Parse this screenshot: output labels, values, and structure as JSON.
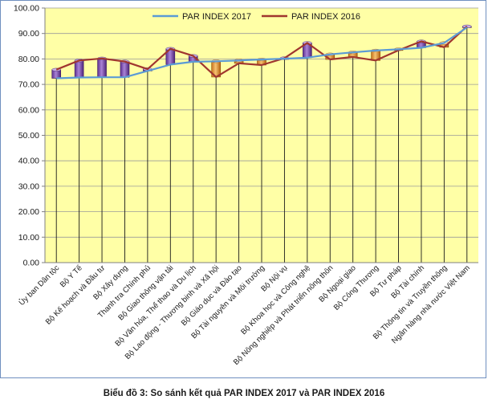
{
  "caption": "Biểu đồ 3: So sánh kết quả PAR INDEX 2017 và PAR INDEX 2016",
  "chart_data": {
    "type": "line",
    "title": "",
    "xlabel": "",
    "ylabel": "",
    "ylim": [
      0,
      100
    ],
    "yticks": [
      "0.00",
      "10.00",
      "20.00",
      "30.00",
      "40.00",
      "50.00",
      "60.00",
      "70.00",
      "80.00",
      "90.00",
      "100.00"
    ],
    "grid": true,
    "legend_position": "top",
    "categories": [
      "Ủy ban Dân tộc",
      "Bộ Y Tế",
      "Bộ Kế hoạch và Đầu tư",
      "Bộ Xây dựng",
      "Thanh tra Chính phủ",
      "Bộ Giao thông vận tải",
      "Bộ Văn hóa, Thể thao và Du lịch",
      "Bộ Lao động - Thương binh và Xã hội",
      "Bộ Giáo dục và Đào tạo",
      "Bộ Tài nguyên và Môi trường",
      "Bộ Nội vụ",
      "Bộ Khoa học và Công nghệ",
      "Bộ Nông nghiệp và Phát triển nông thôn",
      "Bộ Ngoại giao",
      "Bộ Công Thương",
      "Bộ Tư pháp",
      "Bộ Tài chính",
      "Bộ Thông tin và Truyền thông",
      "Ngân hàng nhà nước Việt Nam"
    ],
    "series": [
      {
        "name": "PAR INDEX 2017",
        "color": "#5b9bd5",
        "values": [
          72.4,
          72.7,
          72.8,
          72.8,
          75.3,
          77.8,
          78.9,
          79.1,
          79.4,
          79.8,
          80.1,
          80.5,
          81.8,
          82.6,
          83.3,
          83.8,
          84.4,
          86.3,
          92.4
        ]
      },
      {
        "name": "PAR INDEX 2016",
        "color": "#a0362f",
        "values": [
          75.8,
          79.4,
          80.2,
          79.0,
          76.0,
          84.0,
          81.2,
          72.9,
          78.3,
          77.6,
          80.3,
          86.3,
          79.8,
          80.8,
          79.4,
          83.4,
          86.9,
          84.6,
          92.8
        ]
      }
    ]
  }
}
